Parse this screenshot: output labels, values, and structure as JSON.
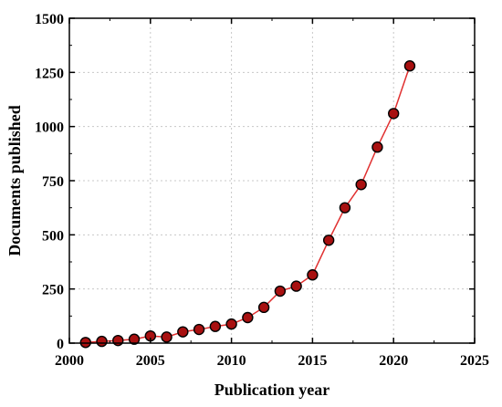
{
  "chart_data": {
    "type": "line",
    "xlabel": "Publication year",
    "ylabel": "Documents published",
    "xlim": [
      2000,
      2025
    ],
    "ylim": [
      0,
      1500
    ],
    "x_ticks": [
      2000,
      2005,
      2010,
      2015,
      2020,
      2025
    ],
    "y_ticks": [
      0,
      250,
      500,
      750,
      1000,
      1250,
      1500
    ],
    "y_tick_labels": [
      "0",
      "250",
      "500",
      "750",
      "1000",
      "1250",
      "1500"
    ],
    "grid": true,
    "series": [
      {
        "x": [
          2001,
          2002,
          2003,
          2004,
          2005,
          2006,
          2007,
          2008,
          2009,
          2010,
          2011,
          2012,
          2013,
          2014,
          2015,
          2016,
          2017,
          2018,
          2019,
          2020,
          2021
        ],
        "values": [
          3,
          8,
          12,
          18,
          33,
          28,
          52,
          63,
          77,
          88,
          118,
          165,
          240,
          263,
          315,
          475,
          625,
          732,
          905,
          1060,
          1280
        ],
        "line_color": "#e03030",
        "marker_color": "#a81010",
        "marker_edge": "#000000"
      }
    ]
  }
}
